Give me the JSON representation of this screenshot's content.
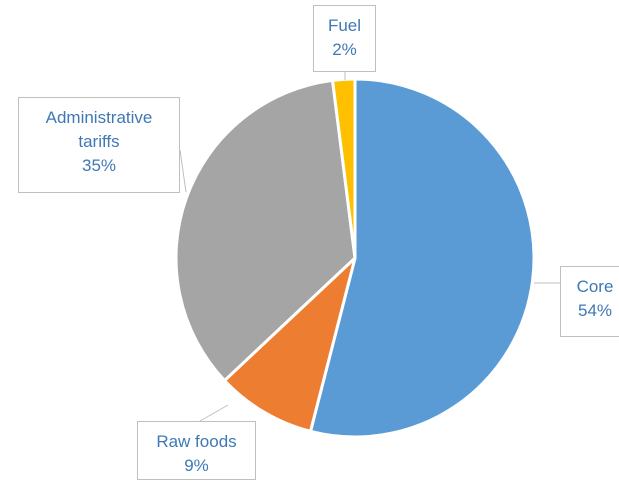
{
  "chart_data": {
    "type": "pie",
    "categories": [
      "Core",
      "Raw foods",
      "Administrative tariffs",
      "Fuel"
    ],
    "values": [
      54,
      9,
      35,
      2
    ],
    "value_labels": [
      "54%",
      "9%",
      "35%",
      "2%"
    ],
    "colors": [
      "#5b9bd5",
      "#ed7d31",
      "#a5a5a5",
      "#ffc000"
    ]
  }
}
